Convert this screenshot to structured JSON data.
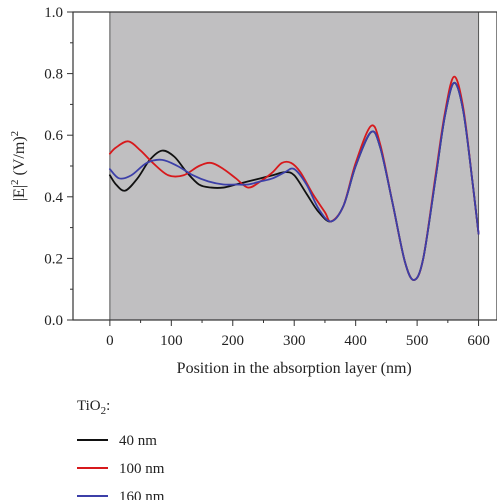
{
  "chart_data": {
    "type": "line",
    "xlabel": "Position in the absorption layer (nm)",
    "ylabel_base": "|E|",
    "ylabel_sup1": "2",
    "ylabel_unit": " (V/m)",
    "ylabel_sup2": "2",
    "xlim": [
      -60,
      630
    ],
    "ylim": [
      0,
      1.0
    ],
    "shaded_region": [
      0,
      600
    ],
    "shade_color": "#c0bfc1",
    "grid": false,
    "xticks": [
      0,
      100,
      200,
      300,
      400,
      500,
      600
    ],
    "xtick_labels": [
      "0",
      "100",
      "200",
      "300",
      "400",
      "500",
      "600"
    ],
    "yticks": [
      0,
      0.2,
      0.4,
      0.6,
      0.8,
      1.0
    ],
    "ytick_labels": [
      "0.0",
      "0.2",
      "0.4",
      "0.6",
      "0.8",
      "1.0"
    ],
    "legend": {
      "title_base": "TiO",
      "title_sub": "2",
      "title_suffix": ":",
      "placement": "below"
    },
    "series": [
      {
        "name": "40 nm",
        "color": "#111111",
        "x": [
          0,
          10,
          25,
          45,
          65,
          85,
          105,
          125,
          145,
          165,
          185,
          205,
          225,
          245,
          265,
          285,
          300,
          320,
          340,
          360,
          380,
          400,
          425,
          440,
          460,
          480,
          495,
          510,
          530,
          545,
          560,
          575,
          590,
          600
        ],
        "y": [
          0.47,
          0.44,
          0.42,
          0.46,
          0.52,
          0.55,
          0.53,
          0.48,
          0.44,
          0.43,
          0.43,
          0.44,
          0.45,
          0.46,
          0.47,
          0.48,
          0.47,
          0.41,
          0.35,
          0.32,
          0.37,
          0.5,
          0.61,
          0.56,
          0.38,
          0.19,
          0.13,
          0.2,
          0.46,
          0.66,
          0.77,
          0.68,
          0.45,
          0.28
        ]
      },
      {
        "name": "100 nm",
        "color": "#d7191c",
        "x": [
          0,
          10,
          30,
          50,
          70,
          95,
          120,
          145,
          165,
          185,
          205,
          225,
          245,
          265,
          280,
          295,
          310,
          330,
          350,
          360,
          380,
          400,
          425,
          440,
          460,
          480,
          495,
          510,
          530,
          545,
          560,
          575,
          590,
          600
        ],
        "y": [
          0.54,
          0.56,
          0.58,
          0.55,
          0.51,
          0.47,
          0.47,
          0.5,
          0.51,
          0.49,
          0.46,
          0.43,
          0.45,
          0.48,
          0.51,
          0.51,
          0.48,
          0.41,
          0.35,
          0.32,
          0.37,
          0.51,
          0.63,
          0.57,
          0.38,
          0.19,
          0.13,
          0.2,
          0.47,
          0.67,
          0.79,
          0.69,
          0.45,
          0.28
        ]
      },
      {
        "name": "160 nm",
        "color": "#3c3fa8",
        "x": [
          0,
          15,
          35,
          60,
          85,
          110,
          135,
          160,
          185,
          205,
          225,
          245,
          265,
          285,
          300,
          320,
          340,
          360,
          380,
          400,
          425,
          440,
          460,
          480,
          495,
          510,
          530,
          545,
          560,
          575,
          590,
          600
        ],
        "y": [
          0.49,
          0.46,
          0.47,
          0.51,
          0.52,
          0.5,
          0.47,
          0.45,
          0.44,
          0.44,
          0.44,
          0.45,
          0.46,
          0.48,
          0.49,
          0.44,
          0.36,
          0.32,
          0.37,
          0.5,
          0.61,
          0.56,
          0.38,
          0.19,
          0.13,
          0.2,
          0.46,
          0.66,
          0.77,
          0.68,
          0.45,
          0.28
        ]
      }
    ]
  }
}
